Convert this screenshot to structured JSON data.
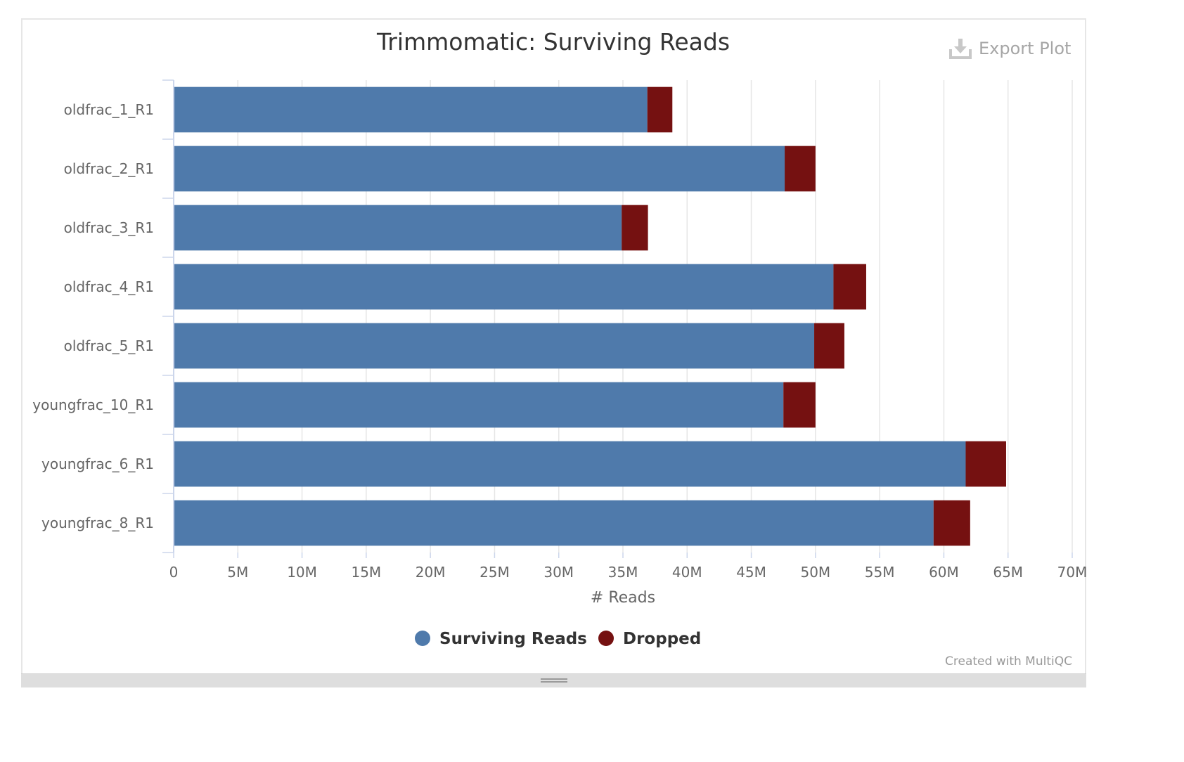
{
  "export_label": "Export Plot",
  "credit": "Created with MultiQC",
  "chart_data": {
    "type": "bar",
    "orientation": "horizontal",
    "stacked": true,
    "title": "Trimmomatic: Surviving Reads",
    "xlabel": "# Reads",
    "ylabel": "",
    "xlim": [
      0,
      70000000
    ],
    "x_tick_labels": [
      "0",
      "5M",
      "10M",
      "15M",
      "20M",
      "25M",
      "30M",
      "35M",
      "40M",
      "45M",
      "50M",
      "55M",
      "60M",
      "65M",
      "70M"
    ],
    "categories": [
      "oldfrac_1_R1",
      "oldfrac_2_R1",
      "oldfrac_3_R1",
      "oldfrac_4_R1",
      "oldfrac_5_R1",
      "youngfrac_10_R1",
      "youngfrac_6_R1",
      "youngfrac_8_R1"
    ],
    "series": [
      {
        "name": "Surviving Reads",
        "color": "#4f7aab",
        "values": [
          36900000,
          47600000,
          34900000,
          51400000,
          49900000,
          47500000,
          61700000,
          59200000
        ]
      },
      {
        "name": "Dropped",
        "color": "#751111",
        "values": [
          1950000,
          2400000,
          2050000,
          2550000,
          2350000,
          2500000,
          3150000,
          2850000
        ]
      }
    ],
    "grid": true,
    "legend": "bottom-center"
  }
}
